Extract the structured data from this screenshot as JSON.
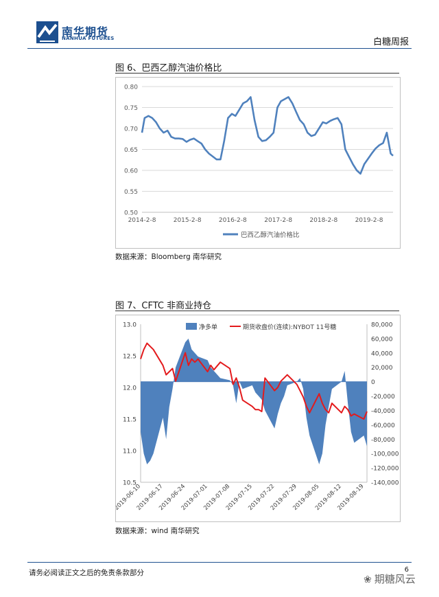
{
  "header": {
    "company_cn": "南华期货",
    "company_en": "NANHUA FUTURES",
    "report_name": "白糖周报"
  },
  "figure6": {
    "title": "图 6、巴西乙醇汽油价格比",
    "source": "数据来源：Bloomberg 南华研究"
  },
  "figure7": {
    "title": "图 7、CFTC 非商业持仓",
    "source": "数据来源：wind  南华研究"
  },
  "footer": {
    "disclaimer": "请务必阅读正文之后的免责条款部分",
    "page_number": "6",
    "watermark": "期糖风云"
  },
  "chart_data": [
    {
      "type": "line",
      "x_tick_labels": [
        "2014-2-8",
        "2015-2-8",
        "2016-2-8",
        "2017-2-8",
        "2018-2-8",
        "2019-2-8"
      ],
      "y_tick_labels": [
        "0.80",
        "0.75",
        "0.70",
        "0.65",
        "0.60",
        "0.55",
        "0.50"
      ],
      "ylim": [
        0.5,
        0.8
      ],
      "xlim": [
        "2014-2-8",
        "2019-8-20"
      ],
      "grid": true,
      "legend_position": "bottom",
      "series": [
        {
          "name": "巴西乙醇汽油价格比",
          "color": "#4f81bd",
          "x": [
            "2014-2-8",
            "2014-3-1",
            "2014-4-1",
            "2014-5-1",
            "2014-6-1",
            "2014-7-1",
            "2014-8-1",
            "2014-9-1",
            "2014-10-1",
            "2014-11-1",
            "2014-12-1",
            "2015-1-1",
            "2015-2-1",
            "2015-3-1",
            "2015-4-1",
            "2015-5-1",
            "2015-6-1",
            "2015-7-1",
            "2015-8-1",
            "2015-9-1",
            "2015-10-1",
            "2015-11-1",
            "2015-12-1",
            "2016-1-1",
            "2016-2-1",
            "2016-3-1",
            "2016-4-1",
            "2016-5-1",
            "2016-6-1",
            "2016-7-1",
            "2016-8-1",
            "2016-9-1",
            "2016-10-1",
            "2016-11-1",
            "2016-12-1",
            "2017-1-1",
            "2017-2-1",
            "2017-3-1",
            "2017-4-1",
            "2017-5-1",
            "2017-6-1",
            "2017-7-1",
            "2017-8-1",
            "2017-9-1",
            "2017-10-1",
            "2017-11-1",
            "2017-12-1",
            "2018-1-1",
            "2018-2-1",
            "2018-3-1",
            "2018-4-1",
            "2018-5-1",
            "2018-6-1",
            "2018-7-1",
            "2018-8-1",
            "2018-9-1",
            "2018-10-1",
            "2018-11-1",
            "2018-12-1",
            "2019-1-1",
            "2019-2-1",
            "2019-3-1",
            "2019-4-1",
            "2019-5-1",
            "2019-6-1",
            "2019-7-1",
            "2019-8-1",
            "2019-8-20"
          ],
          "y": [
            0.69,
            0.725,
            0.73,
            0.725,
            0.715,
            0.7,
            0.69,
            0.695,
            0.68,
            0.676,
            0.676,
            0.675,
            0.668,
            0.673,
            0.676,
            0.67,
            0.664,
            0.65,
            0.64,
            0.633,
            0.626,
            0.626,
            0.67,
            0.725,
            0.735,
            0.73,
            0.745,
            0.76,
            0.765,
            0.775,
            0.72,
            0.68,
            0.67,
            0.672,
            0.68,
            0.69,
            0.75,
            0.765,
            0.77,
            0.775,
            0.76,
            0.74,
            0.72,
            0.71,
            0.69,
            0.682,
            0.685,
            0.7,
            0.715,
            0.712,
            0.718,
            0.722,
            0.725,
            0.71,
            0.65,
            0.632,
            0.615,
            0.6,
            0.592,
            0.615,
            0.628,
            0.64,
            0.652,
            0.66,
            0.665,
            0.69,
            0.64,
            0.635
          ]
        }
      ]
    },
    {
      "type": "area",
      "x_tick_labels": [
        "2019-06-10",
        "2019-06-17",
        "2019-06-24",
        "2019-07-01",
        "2019-07-08",
        "2019-07-15",
        "2019-07-22",
        "2019-07-29",
        "2019-08-05",
        "2019-08-12",
        "2019-08-19"
      ],
      "y_left_tick_labels": [
        "13.0",
        "12.5",
        "12.0",
        "11.5",
        "11.0",
        "10.5"
      ],
      "y_right_tick_labels": [
        "80,000",
        "60,000",
        "40,000",
        "20,000",
        "0",
        "-20,000",
        "-40,000",
        "-60,000",
        "-80,000",
        "-100,000",
        "-120,000",
        "-140,000"
      ],
      "ylim_left": [
        10.5,
        13.0
      ],
      "ylim_right": [
        -140000,
        80000
      ],
      "legend_position": "top",
      "series": [
        {
          "name": "净多单",
          "axis": "right",
          "kind": "area",
          "color": "#4f81bd",
          "x": [
            "2019-06-10",
            "2019-06-11",
            "2019-06-12",
            "2019-06-13",
            "2019-06-14",
            "2019-06-17",
            "2019-06-18",
            "2019-06-19",
            "2019-06-20",
            "2019-06-21",
            "2019-06-24",
            "2019-06-25",
            "2019-06-26",
            "2019-06-27",
            "2019-06-28",
            "2019-07-01",
            "2019-07-02",
            "2019-07-03",
            "2019-07-05",
            "2019-07-08",
            "2019-07-09",
            "2019-07-10",
            "2019-07-11",
            "2019-07-12",
            "2019-07-15",
            "2019-07-16",
            "2019-07-17",
            "2019-07-18",
            "2019-07-19",
            "2019-07-22",
            "2019-07-23",
            "2019-07-24",
            "2019-07-25",
            "2019-07-26",
            "2019-07-29",
            "2019-07-30",
            "2019-07-31",
            "2019-08-01",
            "2019-08-02",
            "2019-08-05",
            "2019-08-06",
            "2019-08-07",
            "2019-08-08",
            "2019-08-09",
            "2019-08-12",
            "2019-08-13",
            "2019-08-14",
            "2019-08-15",
            "2019-08-16",
            "2019-08-19",
            "2019-08-20"
          ],
          "y": [
            -70000,
            -100000,
            -115000,
            -110000,
            -100000,
            -50000,
            -80000,
            -35000,
            -10000,
            20000,
            55000,
            60000,
            45000,
            40000,
            35000,
            30000,
            20000,
            15000,
            5000,
            2000,
            -5000,
            -30000,
            0,
            -10000,
            -5000,
            -15000,
            -20000,
            -25000,
            -40000,
            -65000,
            -45000,
            -30000,
            -20000,
            -5000,
            0,
            5000,
            -10000,
            -50000,
            -75000,
            -115000,
            -100000,
            -60000,
            -35000,
            -10000,
            0,
            15000,
            -30000,
            -70000,
            -85000,
            -75000,
            -90000
          ]
        },
        {
          "name": "期货收盘价(连续):NYBOT 11号糖",
          "axis": "left",
          "kind": "line",
          "color": "#e31a1c",
          "x": [
            "2019-06-10",
            "2019-06-11",
            "2019-06-12",
            "2019-06-13",
            "2019-06-14",
            "2019-06-17",
            "2019-06-18",
            "2019-06-19",
            "2019-06-20",
            "2019-06-21",
            "2019-06-24",
            "2019-06-25",
            "2019-06-26",
            "2019-06-27",
            "2019-06-28",
            "2019-07-01",
            "2019-07-02",
            "2019-07-03",
            "2019-07-05",
            "2019-07-08",
            "2019-07-09",
            "2019-07-10",
            "2019-07-11",
            "2019-07-12",
            "2019-07-15",
            "2019-07-16",
            "2019-07-17",
            "2019-07-18",
            "2019-07-19",
            "2019-07-22",
            "2019-07-23",
            "2019-07-24",
            "2019-07-25",
            "2019-07-26",
            "2019-07-29",
            "2019-07-30",
            "2019-07-31",
            "2019-08-01",
            "2019-08-02",
            "2019-08-05",
            "2019-08-06",
            "2019-08-07",
            "2019-08-08",
            "2019-08-09",
            "2019-08-12",
            "2019-08-13",
            "2019-08-14",
            "2019-08-15",
            "2019-08-16",
            "2019-08-19",
            "2019-08-20"
          ],
          "y": [
            12.45,
            12.6,
            12.7,
            12.65,
            12.6,
            12.35,
            12.2,
            12.25,
            12.3,
            12.1,
            12.55,
            12.35,
            12.45,
            12.4,
            12.45,
            12.25,
            12.35,
            12.28,
            12.4,
            12.3,
            12.05,
            12.15,
            12.0,
            11.8,
            11.7,
            11.65,
            11.65,
            11.62,
            12.15,
            11.95,
            12.0,
            12.1,
            12.15,
            12.2,
            12.05,
            11.95,
            11.85,
            11.7,
            11.6,
            11.9,
            11.75,
            11.65,
            11.6,
            11.75,
            11.6,
            11.7,
            11.65,
            11.55,
            11.58,
            11.5,
            11.62
          ]
        }
      ]
    }
  ]
}
